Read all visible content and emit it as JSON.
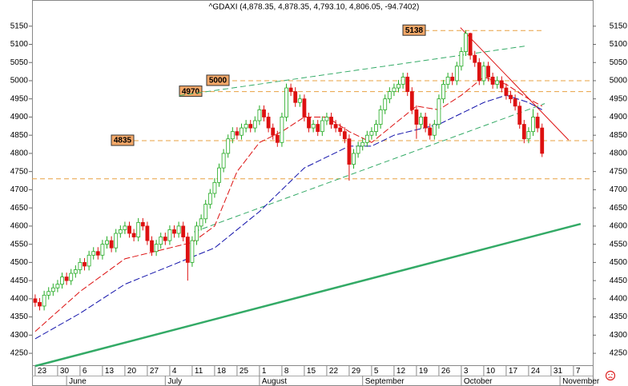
{
  "chart_data": {
    "type": "candlestick",
    "title": "^GDAXI (4,878.35, 4,878.35, 4,793.10, 4,806.05, -94.7402)",
    "up_color": "#22aa22",
    "down_color": "#dd1111",
    "xlim": [
      -0.7,
      124.3
    ],
    "ylim": [
      4215,
      5222
    ],
    "yticks": [
      4250,
      4300,
      4350,
      4400,
      4450,
      4500,
      4550,
      4600,
      4650,
      4700,
      4750,
      4800,
      4850,
      4900,
      4950,
      5000,
      5050,
      5100,
      5150
    ],
    "xticks": [
      {
        "value": 0,
        "label": "23"
      },
      {
        "value": 5,
        "label": "30"
      },
      {
        "value": 10,
        "label": "6"
      },
      {
        "value": 15,
        "label": "13"
      },
      {
        "value": 20,
        "label": "20"
      },
      {
        "value": 25,
        "label": "27"
      },
      {
        "value": 30,
        "label": "4"
      },
      {
        "value": 35,
        "label": "11"
      },
      {
        "value": 40,
        "label": "18"
      },
      {
        "value": 45,
        "label": "25"
      },
      {
        "value": 50,
        "label": "1"
      },
      {
        "value": 55,
        "label": "8"
      },
      {
        "value": 60,
        "label": "15"
      },
      {
        "value": 65,
        "label": "22"
      },
      {
        "value": 70,
        "label": "29"
      },
      {
        "value": 75,
        "label": "5"
      },
      {
        "value": 80,
        "label": "12"
      },
      {
        "value": 85,
        "label": "19"
      },
      {
        "value": 90,
        "label": "26"
      },
      {
        "value": 95,
        "label": "3"
      },
      {
        "value": 100,
        "label": "10"
      },
      {
        "value": 105,
        "label": "17"
      },
      {
        "value": 110,
        "label": "24"
      },
      {
        "value": 115,
        "label": "31"
      },
      {
        "value": 120,
        "label": "7"
      }
    ],
    "months": [
      {
        "value": 7,
        "label": "June"
      },
      {
        "value": 29,
        "label": "July"
      },
      {
        "value": 50,
        "label": "August"
      },
      {
        "value": 73,
        "label": "September"
      },
      {
        "value": 95,
        "label": "October"
      },
      {
        "value": 117,
        "label": "November"
      }
    ],
    "candles": [
      [
        4400,
        4412,
        4378,
        4390
      ],
      [
        4390,
        4402,
        4368,
        4380
      ],
      [
        4380,
        4422,
        4368,
        4410
      ],
      [
        4410,
        4432,
        4398,
        4420
      ],
      [
        4420,
        4442,
        4408,
        4430
      ],
      [
        4430,
        4452,
        4418,
        4440
      ],
      [
        4440,
        4472,
        4428,
        4460
      ],
      [
        4460,
        4472,
        4438,
        4450
      ],
      [
        4450,
        4482,
        4438,
        4470
      ],
      [
        4470,
        4492,
        4458,
        4480
      ],
      [
        4480,
        4512,
        4468,
        4500
      ],
      [
        4500,
        4512,
        4478,
        4490
      ],
      [
        4490,
        4532,
        4478,
        4520
      ],
      [
        4520,
        4542,
        4508,
        4530
      ],
      [
        4530,
        4542,
        4508,
        4520
      ],
      [
        4520,
        4562,
        4508,
        4550
      ],
      [
        4550,
        4572,
        4538,
        4560
      ],
      [
        4560,
        4572,
        4528,
        4540
      ],
      [
        4540,
        4592,
        4528,
        4580
      ],
      [
        4580,
        4602,
        4568,
        4590
      ],
      [
        4590,
        4612,
        4578,
        4600
      ],
      [
        4600,
        4612,
        4568,
        4580
      ],
      [
        4580,
        4592,
        4558,
        4570
      ],
      [
        4570,
        4622,
        4558,
        4610
      ],
      [
        4610,
        4622,
        4588,
        4600
      ],
      [
        4600,
        4612,
        4548,
        4560
      ],
      [
        4560,
        4572,
        4518,
        4530
      ],
      [
        4530,
        4562,
        4518,
        4550
      ],
      [
        4550,
        4582,
        4538,
        4570
      ],
      [
        4570,
        4582,
        4548,
        4560
      ],
      [
        4560,
        4602,
        4548,
        4590
      ],
      [
        4590,
        4602,
        4568,
        4580
      ],
      [
        4580,
        4612,
        4568,
        4600
      ],
      [
        4600,
        4612,
        4558,
        4570
      ],
      [
        4570,
        4582,
        4450,
        4500
      ],
      [
        4500,
        4572,
        4488,
        4560
      ],
      [
        4560,
        4612,
        4548,
        4600
      ],
      [
        4600,
        4632,
        4588,
        4620
      ],
      [
        4620,
        4672,
        4608,
        4660
      ],
      [
        4660,
        4702,
        4648,
        4690
      ],
      [
        4690,
        4732,
        4678,
        4720
      ],
      [
        4720,
        4772,
        4708,
        4760
      ],
      [
        4760,
        4812,
        4748,
        4800
      ],
      [
        4800,
        4852,
        4788,
        4840
      ],
      [
        4840,
        4872,
        4828,
        4860
      ],
      [
        4860,
        4872,
        4838,
        4850
      ],
      [
        4850,
        4882,
        4838,
        4870
      ],
      [
        4870,
        4892,
        4858,
        4880
      ],
      [
        4880,
        4892,
        4858,
        4870
      ],
      [
        4870,
        4902,
        4858,
        4890
      ],
      [
        4890,
        4932,
        4878,
        4920
      ],
      [
        4920,
        4932,
        4888,
        4900
      ],
      [
        4900,
        4912,
        4858,
        4870
      ],
      [
        4870,
        4882,
        4838,
        4850
      ],
      [
        4850,
        4862,
        4818,
        4830
      ],
      [
        4830,
        4912,
        4818,
        4900
      ],
      [
        4900,
        4992,
        4888,
        4980
      ],
      [
        4980,
        4992,
        4958,
        4970
      ],
      [
        4970,
        4982,
        4928,
        4940
      ],
      [
        4940,
        4962,
        4928,
        4950
      ],
      [
        4950,
        4962,
        4888,
        4900
      ],
      [
        4900,
        4912,
        4858,
        4870
      ],
      [
        4870,
        4892,
        4858,
        4880
      ],
      [
        4880,
        4892,
        4848,
        4860
      ],
      [
        4860,
        4902,
        4848,
        4890
      ],
      [
        4890,
        4912,
        4878,
        4900
      ],
      [
        4900,
        4912,
        4868,
        4880
      ],
      [
        4880,
        4892,
        4858,
        4870
      ],
      [
        4870,
        4882,
        4848,
        4860
      ],
      [
        4860,
        4872,
        4828,
        4840
      ],
      [
        4840,
        4852,
        4725,
        4770
      ],
      [
        4770,
        4812,
        4758,
        4800
      ],
      [
        4800,
        4832,
        4788,
        4820
      ],
      [
        4820,
        4842,
        4808,
        4830
      ],
      [
        4830,
        4862,
        4818,
        4850
      ],
      [
        4850,
        4872,
        4838,
        4860
      ],
      [
        4860,
        4892,
        4848,
        4880
      ],
      [
        4880,
        4932,
        4868,
        4920
      ],
      [
        4920,
        4962,
        4908,
        4950
      ],
      [
        4950,
        4982,
        4938,
        4970
      ],
      [
        4970,
        4992,
        4958,
        4980
      ],
      [
        4980,
        5002,
        4968,
        4990
      ],
      [
        4990,
        5022,
        4978,
        5010
      ],
      [
        5010,
        5022,
        4958,
        4970
      ],
      [
        4970,
        4982,
        4908,
        4920
      ],
      [
        4920,
        4932,
        4840,
        4880
      ],
      [
        4880,
        4912,
        4868,
        4900
      ],
      [
        4900,
        4912,
        4858,
        4870
      ],
      [
        4870,
        4882,
        4838,
        4850
      ],
      [
        4850,
        4892,
        4838,
        4880
      ],
      [
        4880,
        4962,
        4868,
        4950
      ],
      [
        4950,
        5002,
        4938,
        4990
      ],
      [
        4990,
        5022,
        4978,
        5010
      ],
      [
        5010,
        5022,
        4988,
        5000
      ],
      [
        5000,
        5052,
        4988,
        5040
      ],
      [
        5040,
        5092,
        5028,
        5080
      ],
      [
        5080,
        5138,
        5068,
        5130
      ],
      [
        5130,
        5132,
        5058,
        5070
      ],
      [
        5070,
        5082,
        5038,
        5050
      ],
      [
        5050,
        5062,
        4988,
        5000
      ],
      [
        5000,
        5052,
        4988,
        5040
      ],
      [
        5040,
        5052,
        4998,
        5010
      ],
      [
        5010,
        5022,
        4978,
        4990
      ],
      [
        4990,
        5012,
        4978,
        5000
      ],
      [
        5000,
        5012,
        4968,
        4980
      ],
      [
        4980,
        4992,
        4948,
        4960
      ],
      [
        4960,
        4972,
        4938,
        4950
      ],
      [
        4950,
        4962,
        4918,
        4930
      ],
      [
        4930,
        4942,
        4868,
        4880
      ],
      [
        4880,
        4892,
        4828,
        4840
      ],
      [
        4840,
        4872,
        4828,
        4860
      ],
      [
        4860,
        4922,
        4848,
        4900
      ],
      [
        4900,
        4912,
        4858,
        4870
      ],
      [
        4870,
        4882,
        4790,
        4800
      ]
    ],
    "series": [
      {
        "color": "#dd1111",
        "x": [
          0,
          10,
          20,
          30,
          35,
          40,
          45,
          50,
          55,
          60,
          65,
          70,
          75,
          80,
          85,
          90,
          95,
          100,
          105,
          110,
          113
        ],
        "values": [
          4310,
          4420,
          4510,
          4540,
          4555,
          4600,
          4750,
          4830,
          4860,
          4900,
          4900,
          4860,
          4830,
          4880,
          4930,
          4920,
          4960,
          5010,
          4990,
          4950,
          4930
        ]
      },
      {
        "color": "#1111aa",
        "x": [
          0,
          10,
          20,
          30,
          40,
          50,
          60,
          70,
          75,
          80,
          90,
          100,
          105,
          110,
          113
        ],
        "values": [
          4290,
          4360,
          4440,
          4490,
          4540,
          4640,
          4760,
          4820,
          4820,
          4850,
          4880,
          4940,
          4960,
          4940,
          4920
        ]
      }
    ],
    "levels": [
      {
        "value": 5138,
        "color": "#e8a040"
      },
      {
        "value": 5000,
        "color": "#e8a040"
      },
      {
        "value": 4970,
        "color": "#e8a040"
      },
      {
        "value": 4835,
        "color": "#e8a040"
      },
      {
        "value": 4730,
        "color": "#e8a040"
      }
    ],
    "trendlines": [
      {
        "x": [
          32.1,
          109.1
        ],
        "values": [
          4959,
          5095
        ],
        "color": "#33aa66",
        "style": "dashed"
      },
      {
        "x": [
          35.4,
          113.6
        ],
        "values": [
          4584,
          4937
        ],
        "color": "#33aa66",
        "style": "dashed"
      },
      {
        "x": [
          0,
          121.6
        ],
        "values": [
          4215,
          4606
        ],
        "color": "#33aa66",
        "style": "thick"
      },
      {
        "x": [
          94.8,
          118.9
        ],
        "values": [
          5146,
          4837
        ],
        "color": "#dd1111",
        "style": "solid"
      }
    ]
  }
}
